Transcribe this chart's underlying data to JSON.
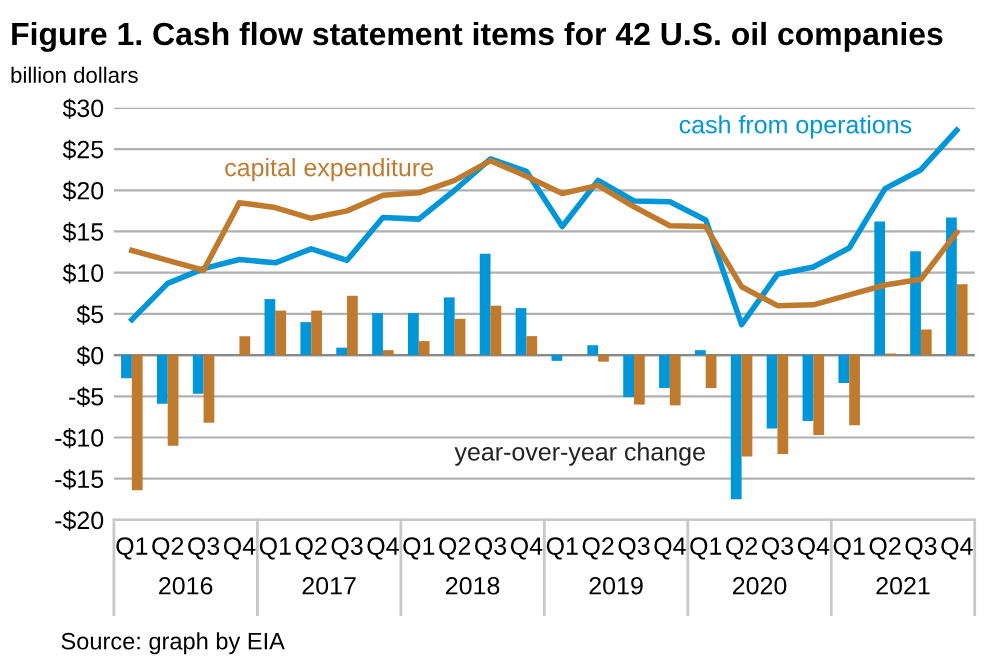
{
  "chart_data": {
    "type": "bar",
    "title": "Figure 1. Cash flow statement items for 42 U.S. oil companies",
    "subtitle": "billion dollars",
    "categories": [
      "Q1",
      "Q2",
      "Q3",
      "Q4",
      "Q1",
      "Q2",
      "Q3",
      "Q4",
      "Q1",
      "Q2",
      "Q3",
      "Q4",
      "Q1",
      "Q2",
      "Q3",
      "Q4",
      "Q1",
      "Q2",
      "Q3",
      "Q4",
      "Q1",
      "Q2",
      "Q3",
      "Q4"
    ],
    "series": [
      {
        "name": "cash from operations",
        "type": "line",
        "color": "#0096d7",
        "values": [
          4.3,
          8.7,
          10.5,
          11.6,
          11.2,
          12.9,
          11.5,
          16.7,
          16.5,
          20.0,
          23.8,
          22.3,
          15.6,
          21.2,
          18.7,
          18.6,
          16.4,
          3.7,
          9.8,
          10.7,
          13.0,
          20.2,
          22.5,
          27.3
        ]
      },
      {
        "name": "capital expenditure",
        "type": "line",
        "color": "#c07a2e",
        "values": [
          12.7,
          11.5,
          10.3,
          18.5,
          17.9,
          16.6,
          17.5,
          19.4,
          19.7,
          21.2,
          23.6,
          21.7,
          19.6,
          20.6,
          18.0,
          15.7,
          15.6,
          8.3,
          6.0,
          6.1,
          7.3,
          8.5,
          9.2,
          14.9
        ]
      },
      {
        "color": "#0096d7",
        "values": [
          -2.8,
          -5.9,
          -4.7,
          0,
          6.8,
          4.0,
          0.9,
          5.1,
          5.1,
          7.0,
          12.3,
          5.7,
          -0.7,
          1.2,
          -5.1,
          -4.0,
          0.6,
          -17.5,
          -8.9,
          -8.0,
          -3.4,
          16.2,
          12.6,
          16.7
        ]
      },
      {
        "color": "#c07a2e",
        "values": [
          -16.4,
          -11.0,
          -8.2,
          2.3,
          5.4,
          5.4,
          7.2,
          0.6,
          1.7,
          4.4,
          6.0,
          2.3,
          0,
          -0.8,
          -6.0,
          -6.1,
          -4.0,
          -12.3,
          -12.0,
          -9.7,
          -8.5,
          0.2,
          3.1,
          8.6
        ]
      }
    ],
    "annotations": [
      "2016",
      "2017",
      "2018",
      "2019",
      "2020",
      "2021",
      "year-over-year change",
      "Source: graph by EIA"
    ],
    "ylim": [
      -20,
      30
    ],
    "yticks": [
      {
        "value": -20,
        "label": "-$20"
      },
      {
        "value": -15,
        "label": "-$15"
      },
      {
        "value": -10,
        "label": "-$10"
      },
      {
        "value": -5,
        "label": "-$5"
      },
      {
        "value": 0,
        "label": "$0"
      },
      {
        "value": 5,
        "label": "$5"
      },
      {
        "value": 10,
        "label": "$10"
      },
      {
        "value": 15,
        "label": "$15"
      },
      {
        "value": 20,
        "label": "$20"
      },
      {
        "value": 25,
        "label": "$25"
      },
      {
        "value": 30,
        "label": "$30"
      }
    ],
    "grid": "y",
    "legend": false
  }
}
